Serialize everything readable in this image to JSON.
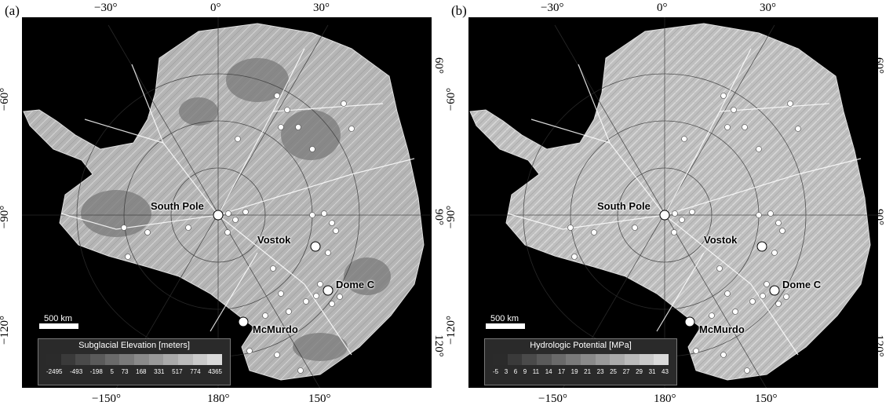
{
  "panels": [
    {
      "label": "(a)",
      "top_lon": [
        "−30°",
        "0°",
        "30°"
      ],
      "bottom_lon": [
        "−150°",
        "180°",
        "150°"
      ],
      "left_lat": [
        "−60°",
        "−90°",
        "−120°"
      ],
      "right_lat": [
        "60°",
        "90°",
        "120°"
      ],
      "stations": {
        "south_pole": "South Pole",
        "vostok": "Vostok",
        "dome_c": "Dome C",
        "mcmurdo": "McMurdo"
      },
      "scale_label": "500 km",
      "legend": {
        "title": "Subglacial Elevation [meters]",
        "ticks": [
          "-2495",
          "-493",
          "-198",
          "5",
          "73",
          "168",
          "331",
          "517",
          "774",
          "4365"
        ]
      }
    },
    {
      "label": "(b)",
      "top_lon": [
        "−30°",
        "0°",
        "30°"
      ],
      "bottom_lon": [
        "−150°",
        "180°",
        "150°"
      ],
      "left_lat": [
        "−60°",
        "−90°",
        "−120°"
      ],
      "right_lat": [
        "60°",
        "90°",
        "120°"
      ],
      "stations": {
        "south_pole": "South Pole",
        "vostok": "Vostok",
        "dome_c": "Dome C",
        "mcmurdo": "McMurdo"
      },
      "scale_label": "500 km",
      "legend": {
        "title": "Hydrologic Potential [MPa]",
        "ticks": [
          "-5",
          "3",
          "6",
          "9",
          "11",
          "14",
          "17",
          "19",
          "21",
          "23",
          "25",
          "27",
          "29",
          "31",
          "43"
        ]
      }
    }
  ],
  "colors": {
    "ocean": "#000000",
    "ice_light": "#bdbdbd",
    "ice_dark": "#7c7c7c",
    "marker": "#ffffff"
  }
}
